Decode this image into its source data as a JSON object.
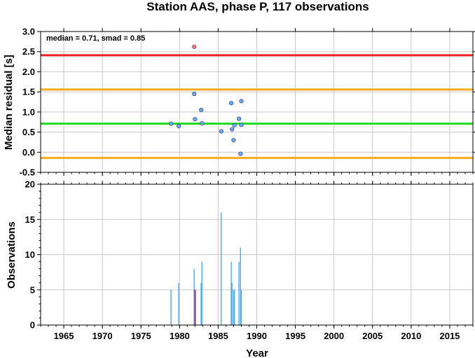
{
  "chart_data": [
    {
      "type": "scatter",
      "title": "Station AAS, phase P, 117 observations",
      "ylabel": "Median residual [s]",
      "annotation": "median = 0.71, smad = 0.85",
      "xlim": [
        1962,
        2018
      ],
      "ylim": [
        -0.5,
        3.0
      ],
      "yticks": [
        "3.0",
        "2.5",
        "2.0",
        "1.5",
        "1.0",
        "0.5",
        "0.0",
        "-0.5"
      ],
      "grid": true,
      "reference_lines": [
        {
          "role": "upper-limit",
          "y": 2.41,
          "color": "#ee2222"
        },
        {
          "role": "upper-smad",
          "y": 1.56,
          "color": "#ffaa22"
        },
        {
          "role": "median",
          "y": 0.71,
          "color": "#22dd22"
        },
        {
          "role": "lower-smad",
          "y": -0.14,
          "color": "#ffaa22"
        }
      ],
      "points": [
        {
          "x": 1978.9,
          "y": 0.71,
          "flag": "normal"
        },
        {
          "x": 1979.9,
          "y": 0.65,
          "flag": "normal"
        },
        {
          "x": 1981.9,
          "y": 2.62,
          "flag": "outlier"
        },
        {
          "x": 1981.9,
          "y": 1.45,
          "flag": "normal"
        },
        {
          "x": 1982.0,
          "y": 0.82,
          "flag": "normal"
        },
        {
          "x": 1982.8,
          "y": 1.05,
          "flag": "normal"
        },
        {
          "x": 1982.9,
          "y": 0.72,
          "flag": "normal"
        },
        {
          "x": 1985.4,
          "y": 0.52,
          "flag": "normal"
        },
        {
          "x": 1986.7,
          "y": 1.22,
          "flag": "normal"
        },
        {
          "x": 1986.8,
          "y": 0.57,
          "flag": "normal"
        },
        {
          "x": 1987.0,
          "y": 0.3,
          "flag": "normal"
        },
        {
          "x": 1987.1,
          "y": 0.67,
          "flag": "normal"
        },
        {
          "x": 1987.7,
          "y": 0.83,
          "flag": "normal"
        },
        {
          "x": 1987.9,
          "y": -0.04,
          "flag": "normal"
        },
        {
          "x": 1988.0,
          "y": 1.27,
          "flag": "normal"
        },
        {
          "x": 1988.0,
          "y": 0.68,
          "flag": "normal"
        }
      ],
      "colors": {
        "normal": "#66aaff",
        "outlier": "#ff7777"
      }
    },
    {
      "type": "bar",
      "xlabel": "Year",
      "ylabel": "Observations",
      "xlim": [
        1962,
        2018
      ],
      "ylim": [
        0,
        20
      ],
      "xticks": [
        "1965",
        "1970",
        "1975",
        "1980",
        "1985",
        "1990",
        "1995",
        "2000",
        "2005",
        "2010",
        "2015"
      ],
      "yticks": [
        "20",
        "15",
        "10",
        "5",
        "0"
      ],
      "grid": true,
      "bars": [
        {
          "x": 1978.9,
          "value": 5,
          "flag": "normal"
        },
        {
          "x": 1979.9,
          "value": 6,
          "flag": "normal"
        },
        {
          "x": 1981.9,
          "value": 8,
          "flag": "normal"
        },
        {
          "x": 1982.0,
          "value": 5,
          "flag": "outlier"
        },
        {
          "x": 1982.8,
          "value": 6,
          "flag": "normal"
        },
        {
          "x": 1982.9,
          "value": 9,
          "flag": "normal"
        },
        {
          "x": 1985.4,
          "value": 16,
          "flag": "normal"
        },
        {
          "x": 1986.7,
          "value": 9,
          "flag": "normal"
        },
        {
          "x": 1986.8,
          "value": 6,
          "flag": "normal"
        },
        {
          "x": 1987.0,
          "value": 5,
          "flag": "normal"
        },
        {
          "x": 1987.1,
          "value": 5,
          "flag": "normal"
        },
        {
          "x": 1987.7,
          "value": 9,
          "flag": "normal"
        },
        {
          "x": 1987.9,
          "value": 11,
          "flag": "normal"
        },
        {
          "x": 1988.0,
          "value": 5,
          "flag": "normal"
        }
      ],
      "colors": {
        "normal": "#44aaff",
        "outlier": "#cc2244"
      }
    }
  ]
}
